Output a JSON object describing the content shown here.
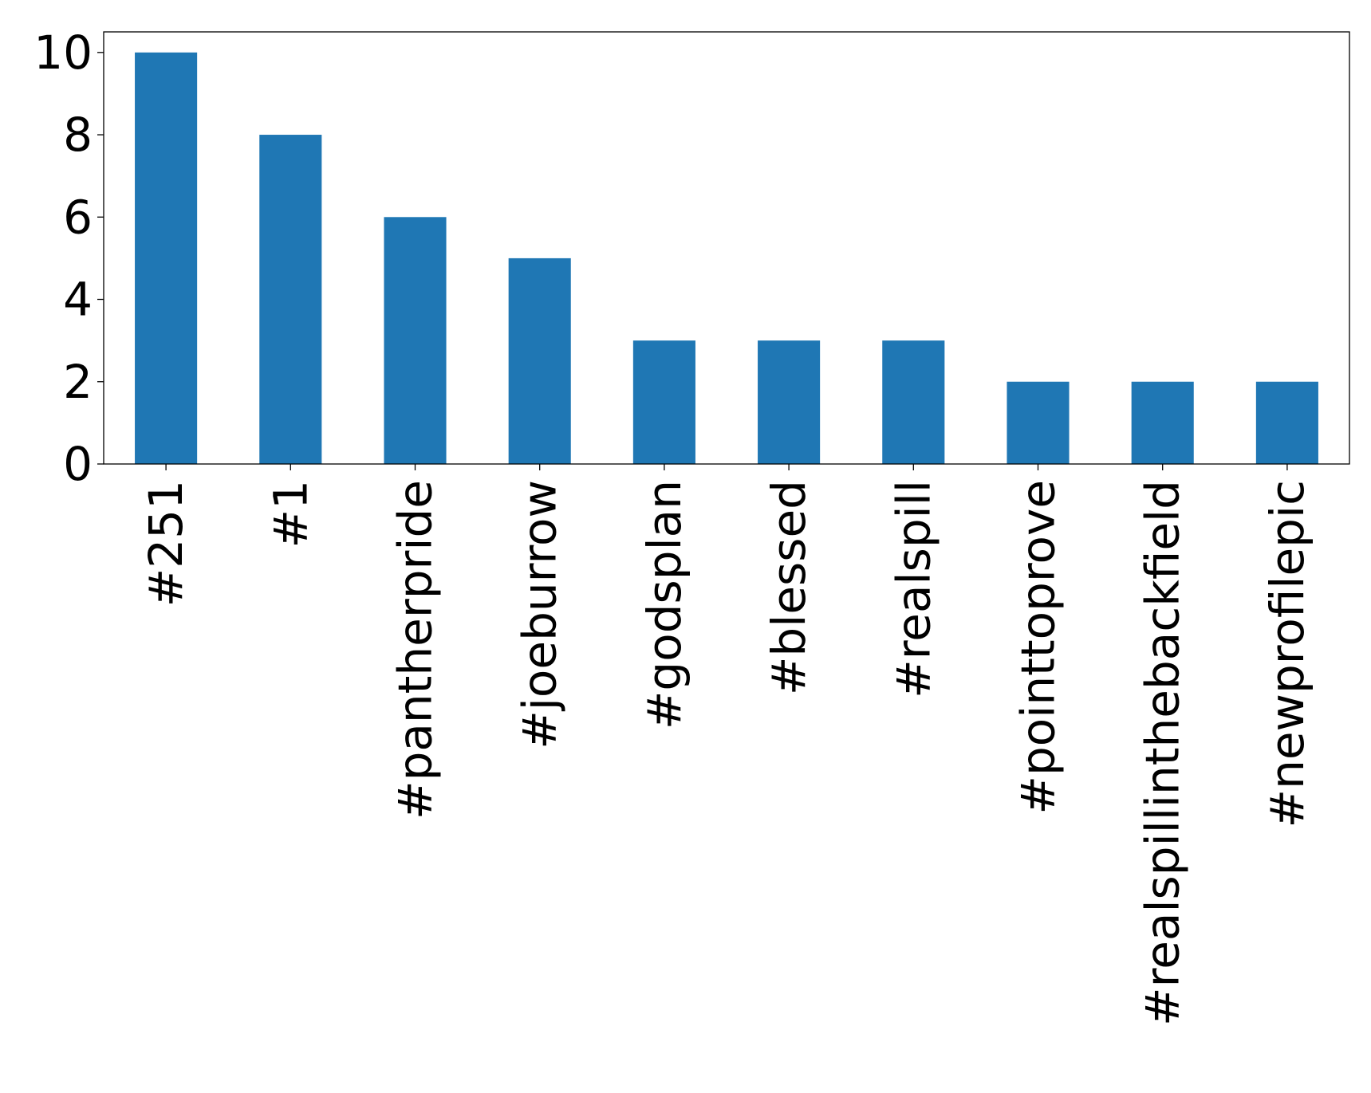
{
  "chart_data": {
    "type": "bar",
    "title": "",
    "xlabel": "",
    "ylabel": "",
    "categories": [
      "#251",
      "#1",
      "#pantherpride",
      "#joeburrow",
      "#godsplan",
      "#blessed",
      "#realspill",
      "#pointtoprove",
      "#realspillinthebackfield",
      "#newprofilepic"
    ],
    "values": [
      10,
      8,
      6,
      5,
      3,
      3,
      3,
      2,
      2,
      2
    ],
    "ylim": [
      0,
      10.5
    ],
    "yticks": [
      0,
      2,
      4,
      6,
      8,
      10
    ],
    "ytick_labels": [
      "0",
      "2",
      "4",
      "6",
      "8",
      "10"
    ],
    "bar_color": "#1f77b4",
    "grid": false,
    "legend": "none"
  }
}
